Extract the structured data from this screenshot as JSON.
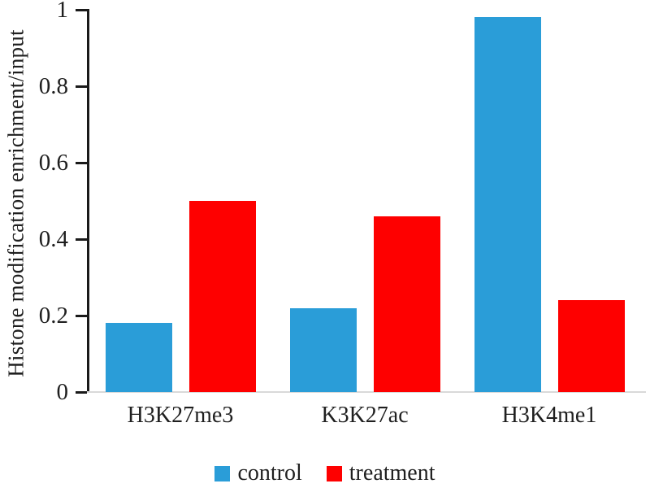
{
  "chart_data": {
    "type": "bar",
    "title": "",
    "xlabel": "",
    "ylabel": "Histone modification enrichment/input",
    "categories": [
      "H3K27me3",
      "K3K27ac",
      "H3K4me1"
    ],
    "series": [
      {
        "name": "control",
        "color": "#2a9dd8",
        "values": [
          0.18,
          0.22,
          0.98
        ]
      },
      {
        "name": "treatment",
        "color": "#fe0000",
        "values": [
          0.5,
          0.46,
          0.24
        ]
      }
    ],
    "ylim": [
      0,
      1
    ],
    "yticks": [
      0,
      0.2,
      0.4,
      0.6,
      0.8,
      1
    ],
    "ytick_labels": [
      "0",
      "0.2",
      "0.4",
      "0.6",
      "0.8",
      "1"
    ],
    "grid": false,
    "legend_position": "bottom",
    "colors": {
      "axis": "#1a1a1a",
      "baseline": "#d9d9d9",
      "text": "#1f1f1f",
      "background": "#ffffff"
    }
  }
}
